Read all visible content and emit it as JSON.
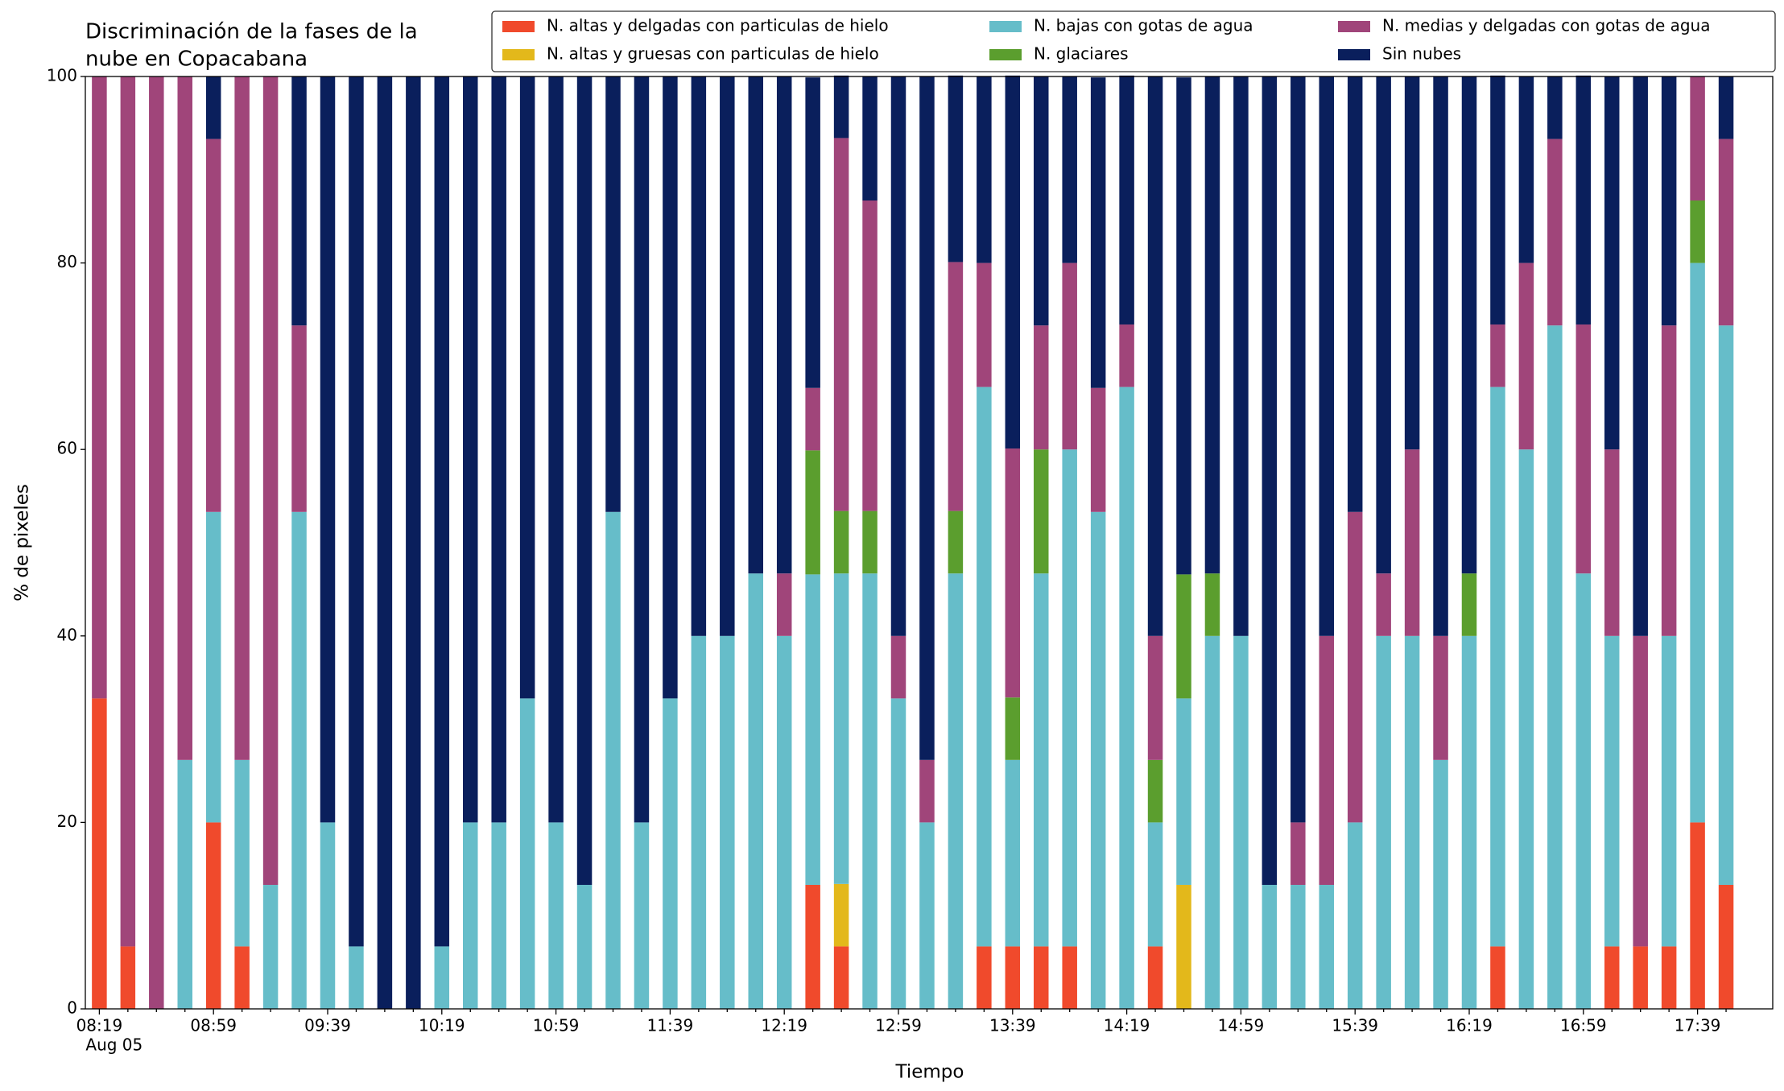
{
  "chart_data": {
    "type": "stacked_bar",
    "title_lines": [
      "Discriminación de la fases de la",
      "nube en Copacabana"
    ],
    "x_label": "Tiempo",
    "y_label": "% de pixeles",
    "date_label": "Aug 05",
    "categories": [
      "08:19",
      null,
      null,
      null,
      "08:59",
      null,
      null,
      null,
      "09:39",
      null,
      null,
      null,
      "10:19",
      null,
      null,
      null,
      "10:59",
      null,
      null,
      null,
      "11:39",
      null,
      null,
      null,
      "12:19",
      null,
      null,
      null,
      "12:59",
      null,
      null,
      null,
      "13:39",
      null,
      null,
      null,
      "14:19",
      null,
      null,
      null,
      "14:59",
      null,
      null,
      null,
      "15:39",
      null,
      null,
      null,
      "16:19",
      null,
      null,
      null,
      "16:59",
      null,
      null,
      null,
      "17:39",
      null
    ],
    "ylim": [
      0,
      100
    ],
    "yticks": [
      0,
      20,
      40,
      60,
      80,
      100
    ],
    "legend": "top",
    "series": [
      {
        "name": "N. altas y delgadas con particulas de hielo",
        "color": "#f04a2c",
        "values": [
          33.3,
          6.7,
          0,
          0,
          20,
          6.7,
          0,
          0,
          0,
          0,
          0,
          0,
          0,
          0,
          0,
          0,
          0,
          0,
          0,
          0,
          0,
          0,
          0,
          0,
          0,
          13.3,
          6.7,
          0,
          0,
          0,
          0,
          6.7,
          6.7,
          6.7,
          6.7,
          0,
          0,
          6.7,
          0,
          0,
          0,
          0,
          0,
          0,
          0,
          0,
          0,
          0,
          0,
          6.7,
          0,
          0,
          0,
          6.7,
          6.7,
          6.7,
          20,
          13.3
        ]
      },
      {
        "name": "N. altas y gruesas con particulas de hielo",
        "color": "#e3b81b",
        "values": [
          0,
          0,
          0,
          0,
          0,
          0,
          0,
          0,
          0,
          0,
          0,
          0,
          0,
          0,
          0,
          0,
          0,
          0,
          0,
          0,
          0,
          0,
          0,
          0,
          0,
          0,
          6.7,
          0,
          0,
          0,
          0,
          0,
          0,
          0,
          0,
          0,
          0,
          0,
          13.3,
          0,
          0,
          0,
          0,
          0,
          0,
          0,
          0,
          0,
          0,
          0,
          0,
          0,
          0,
          0,
          0,
          0,
          0,
          0
        ]
      },
      {
        "name": "N. bajas con gotas de agua",
        "color": "#66bdc9",
        "values": [
          0,
          0,
          0,
          26.7,
          33.3,
          20,
          13.3,
          53.3,
          20,
          6.7,
          0,
          0,
          6.7,
          20,
          20,
          33.3,
          20,
          13.3,
          53.3,
          20,
          33.3,
          40,
          40,
          46.7,
          40,
          33.3,
          33.3,
          46.7,
          33.3,
          20,
          46.7,
          60,
          20,
          40,
          53.3,
          53.3,
          66.7,
          13.3,
          20,
          40,
          40,
          13.3,
          13.3,
          13.3,
          20,
          40,
          40,
          26.7,
          40,
          60,
          60,
          73.3,
          46.7,
          33.3,
          0,
          33.3,
          60,
          60
        ]
      },
      {
        "name": "N. glaciares",
        "color": "#5b9e2e",
        "values": [
          0,
          0,
          0,
          0,
          0,
          0,
          0,
          0,
          0,
          0,
          0,
          0,
          0,
          0,
          0,
          0,
          0,
          0,
          0,
          0,
          0,
          0,
          0,
          0,
          0,
          13.3,
          6.7,
          6.7,
          0,
          0,
          6.7,
          0,
          6.7,
          13.3,
          0,
          0,
          0,
          6.7,
          13.3,
          6.7,
          0,
          0,
          0,
          0,
          0,
          0,
          0,
          0,
          6.7,
          0,
          0,
          0,
          0,
          0,
          0,
          0,
          6.7,
          0
        ]
      },
      {
        "name": "N. medias y delgadas con gotas de agua",
        "color": "#a0457a",
        "values": [
          66.7,
          93.3,
          100,
          73.3,
          40,
          73.3,
          86.7,
          20,
          0,
          0,
          0,
          0,
          0,
          0,
          0,
          0,
          0,
          0,
          0,
          0,
          0,
          0,
          0,
          0,
          6.7,
          6.7,
          40,
          33.3,
          6.7,
          6.7,
          26.7,
          13.3,
          26.7,
          13.3,
          20,
          13.3,
          6.7,
          13.3,
          0,
          0,
          0,
          0,
          6.7,
          26.7,
          33.3,
          6.7,
          20,
          13.3,
          0,
          6.7,
          20,
          20,
          26.7,
          20,
          33.3,
          33.3,
          13.3,
          20
        ]
      },
      {
        "name": "Sin nubes",
        "color": "#0a1f5c",
        "values": [
          0,
          0,
          0,
          0,
          6.7,
          0,
          0,
          26.7,
          80,
          93.3,
          100,
          100,
          93.3,
          80,
          80,
          66.7,
          80,
          86.7,
          46.7,
          80,
          66.7,
          60,
          60,
          53.3,
          53.3,
          33.3,
          6.7,
          13.3,
          60,
          73.3,
          20,
          20,
          40,
          26.7,
          20,
          33.3,
          26.7,
          60,
          53.3,
          53.3,
          60,
          86.7,
          80,
          60,
          46.7,
          53.3,
          40,
          60,
          53.3,
          26.7,
          20,
          6.7,
          26.7,
          40,
          60,
          26.7,
          0,
          6.7
        ]
      }
    ]
  }
}
